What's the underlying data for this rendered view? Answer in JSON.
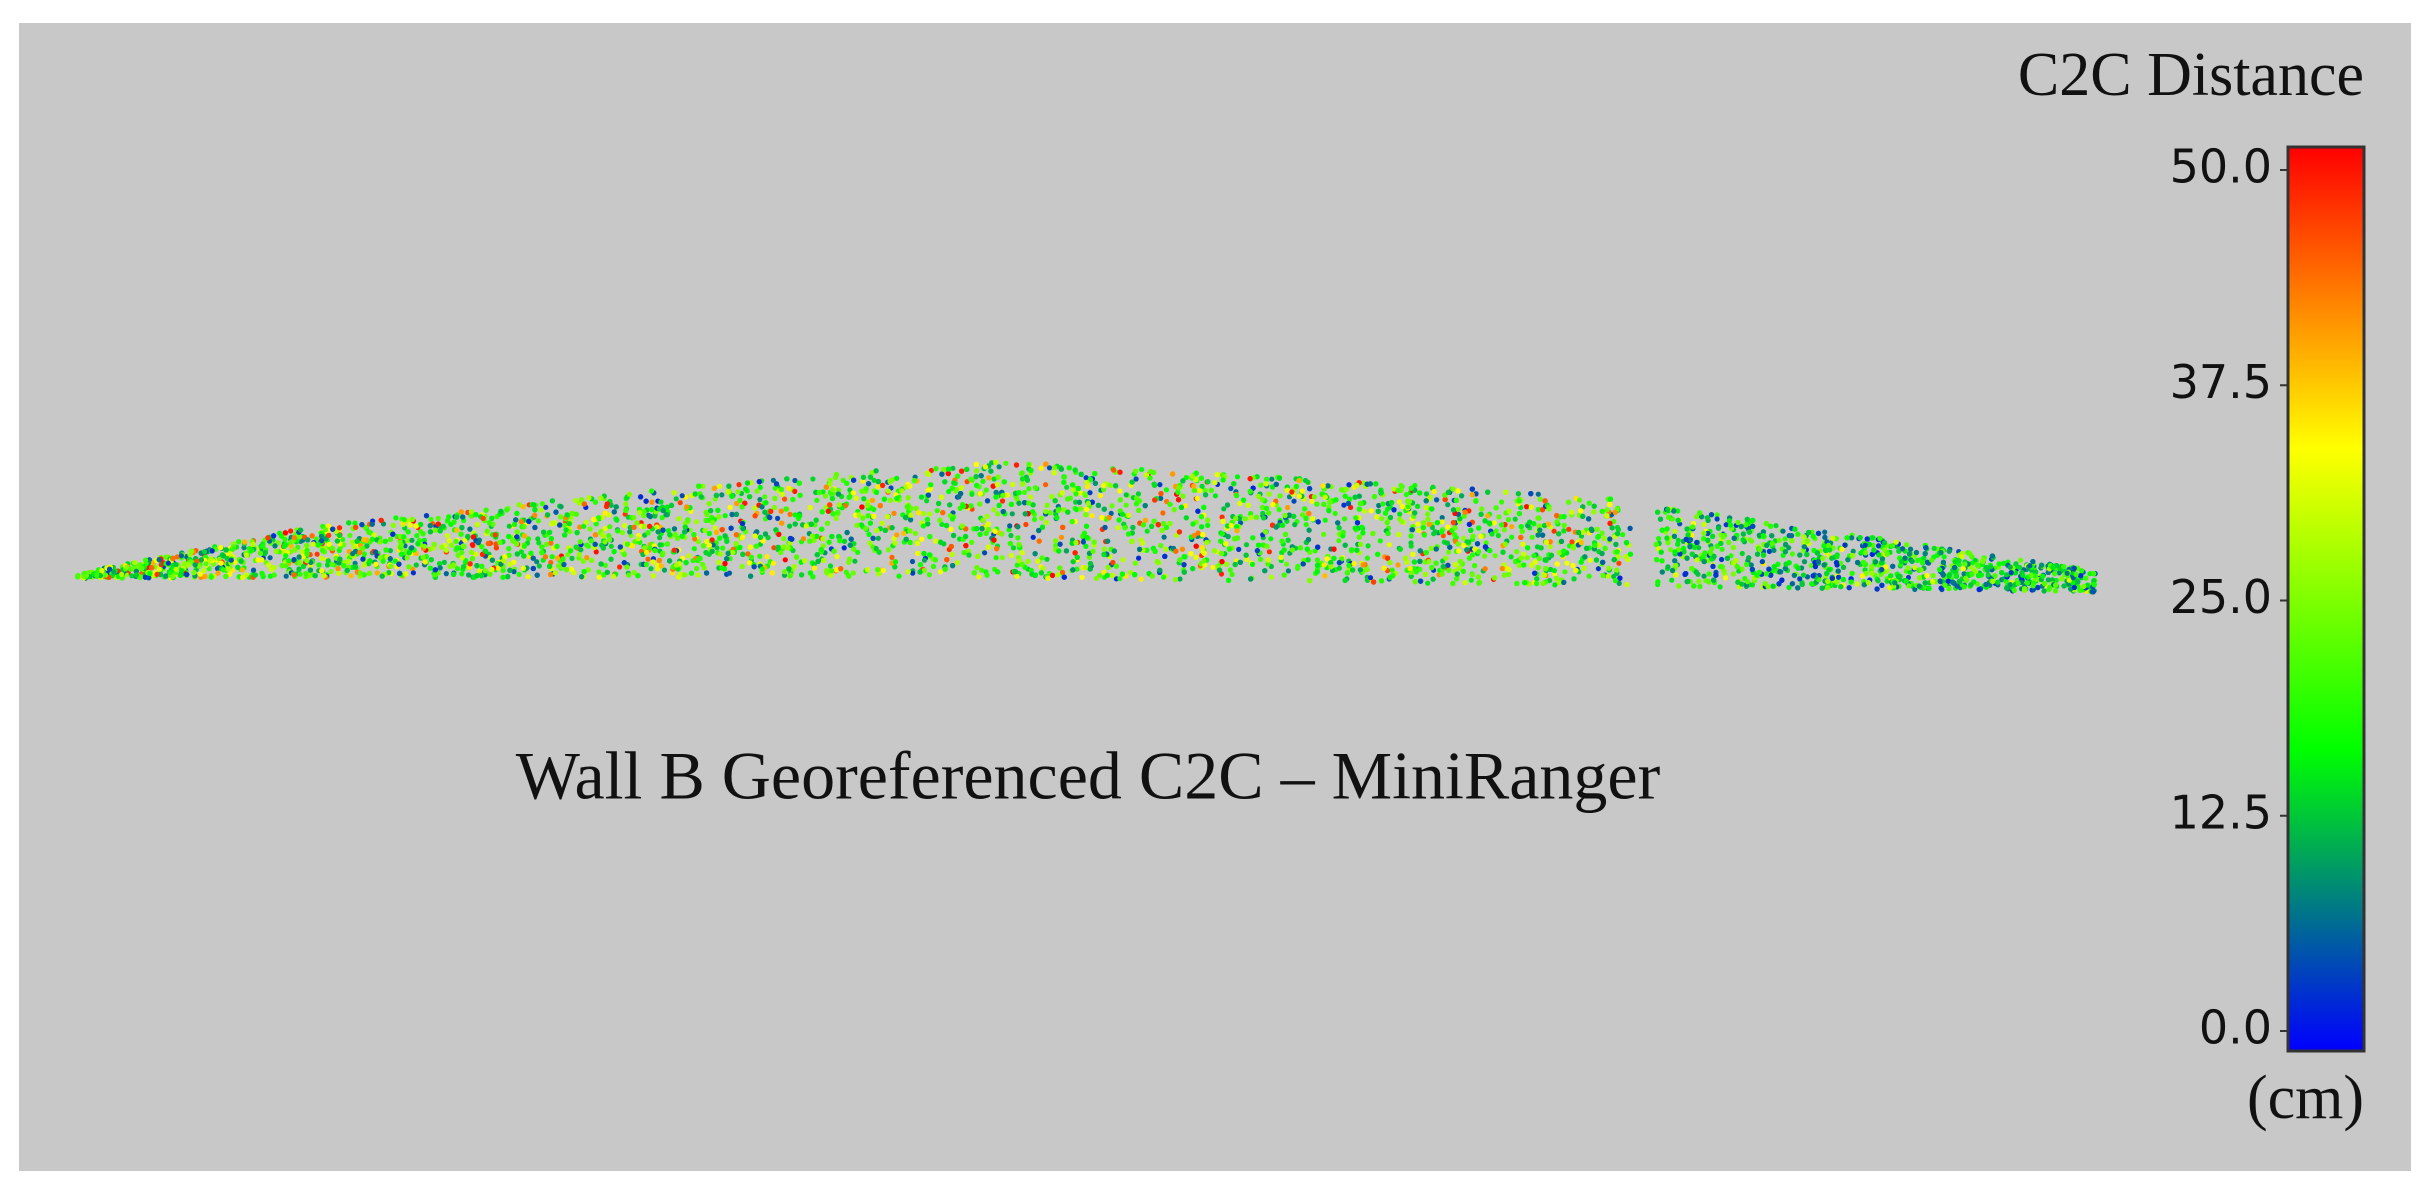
{
  "title": "Wall B Georeferenced C2C – MiniRanger",
  "colorbar": {
    "title": "C2C Distance",
    "unit": "(cm)",
    "range": [
      0,
      50
    ],
    "colors": [
      "#0000ff",
      "#00ff00",
      "#ffff00",
      "#ff0000"
    ],
    "ticks": [
      {
        "value": 0,
        "label": "0.0"
      },
      {
        "value": 12.5,
        "label": "12.5"
      },
      {
        "value": 25,
        "label": "25.0"
      },
      {
        "value": 37.5,
        "label": "37.5"
      },
      {
        "value": 50,
        "label": "50.0"
      }
    ]
  }
}
